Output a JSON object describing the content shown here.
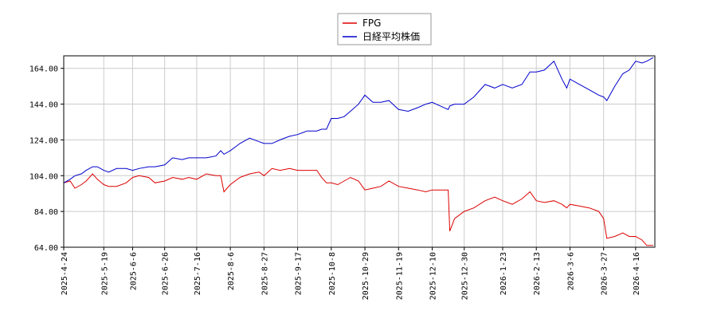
{
  "chart_data": {
    "type": "line",
    "title": "",
    "xlabel": "",
    "ylabel": "",
    "ylim": [
      64,
      171
    ],
    "yticks": [
      "64.00",
      "84.00",
      "104.00",
      "124.00",
      "144.00",
      "164.00"
    ],
    "xticks": [
      "2025-4-24",
      "2025-5-19",
      "2025-6-6",
      "2025-6-26",
      "2025-7-16",
      "2025-8-6",
      "2025-8-27",
      "2025-9-17",
      "2025-10-8",
      "2025-10-29",
      "2025-11-19",
      "2025-12-10",
      "2025-12-30",
      "2026-1-23",
      "2026-2-13",
      "2026-3-6",
      "2026-3-27",
      "2026-4-16"
    ],
    "grid": true,
    "legend_position": "top-center",
    "series": [
      {
        "name": "FPG",
        "color": "#dd0000",
        "points": [
          [
            "2025-4-24",
            100
          ],
          [
            "2025-4-28",
            101
          ],
          [
            "2025-5-1",
            97
          ],
          [
            "2025-5-5",
            99
          ],
          [
            "2025-5-8",
            101
          ],
          [
            "2025-5-12",
            105
          ],
          [
            "2025-5-15",
            102
          ],
          [
            "2025-5-19",
            99
          ],
          [
            "2025-5-22",
            98
          ],
          [
            "2025-5-27",
            98
          ],
          [
            "2025-6-2",
            100
          ],
          [
            "2025-6-6",
            103
          ],
          [
            "2025-6-10",
            104
          ],
          [
            "2025-6-16",
            103
          ],
          [
            "2025-6-20",
            100
          ],
          [
            "2025-6-26",
            101
          ],
          [
            "2025-7-1",
            103
          ],
          [
            "2025-7-7",
            102
          ],
          [
            "2025-7-11",
            103
          ],
          [
            "2025-7-16",
            102
          ],
          [
            "2025-7-22",
            105
          ],
          [
            "2025-7-28",
            104
          ],
          [
            "2025-7-31",
            104
          ],
          [
            "2025-8-2",
            95
          ],
          [
            "2025-8-6",
            99
          ],
          [
            "2025-8-12",
            103
          ],
          [
            "2025-8-18",
            105
          ],
          [
            "2025-8-24",
            106
          ],
          [
            "2025-8-27",
            104
          ],
          [
            "2025-9-1",
            108
          ],
          [
            "2025-9-6",
            107
          ],
          [
            "2025-9-12",
            108
          ],
          [
            "2025-9-17",
            107
          ],
          [
            "2025-9-23",
            107
          ],
          [
            "2025-9-29",
            107
          ],
          [
            "2025-10-2",
            103
          ],
          [
            "2025-10-5",
            100
          ],
          [
            "2025-10-8",
            100
          ],
          [
            "2025-10-12",
            99
          ],
          [
            "2025-10-16",
            101
          ],
          [
            "2025-10-20",
            103
          ],
          [
            "2025-10-25",
            101
          ],
          [
            "2025-10-29",
            96
          ],
          [
            "2025-11-3",
            97
          ],
          [
            "2025-11-8",
            98
          ],
          [
            "2025-11-13",
            101
          ],
          [
            "2025-11-19",
            98
          ],
          [
            "2025-11-25",
            97
          ],
          [
            "2025-12-1",
            96
          ],
          [
            "2025-12-6",
            95
          ],
          [
            "2025-12-10",
            96
          ],
          [
            "2025-12-15",
            96
          ],
          [
            "2025-12-20",
            96
          ],
          [
            "2025-12-21",
            73
          ],
          [
            "2025-12-24",
            80
          ],
          [
            "2025-12-30",
            84
          ],
          [
            "2026-1-5",
            86
          ],
          [
            "2026-1-12",
            90
          ],
          [
            "2026-1-18",
            92
          ],
          [
            "2026-1-23",
            90
          ],
          [
            "2026-1-29",
            88
          ],
          [
            "2026-2-4",
            91
          ],
          [
            "2026-2-9",
            95
          ],
          [
            "2026-2-13",
            90
          ],
          [
            "2026-2-18",
            89
          ],
          [
            "2026-2-24",
            90
          ],
          [
            "2026-3-1",
            88
          ],
          [
            "2026-3-4",
            86
          ],
          [
            "2026-3-6",
            88
          ],
          [
            "2026-3-12",
            87
          ],
          [
            "2026-3-18",
            86
          ],
          [
            "2026-3-24",
            84
          ],
          [
            "2026-3-27",
            80
          ],
          [
            "2026-3-29",
            69
          ],
          [
            "2026-4-3",
            70
          ],
          [
            "2026-4-8",
            72
          ],
          [
            "2026-4-12",
            70
          ],
          [
            "2026-4-16",
            70
          ],
          [
            "2026-4-20",
            68
          ],
          [
            "2026-4-23",
            65
          ],
          [
            "2026-4-27",
            65
          ]
        ]
      },
      {
        "name": "日経平均株価",
        "color": "#0000cc",
        "points": [
          [
            "2025-4-24",
            100
          ],
          [
            "2025-4-28",
            102
          ],
          [
            "2025-5-1",
            104
          ],
          [
            "2025-5-5",
            105
          ],
          [
            "2025-5-8",
            107
          ],
          [
            "2025-5-12",
            109
          ],
          [
            "2025-5-15",
            109
          ],
          [
            "2025-5-19",
            107
          ],
          [
            "2025-5-22",
            106
          ],
          [
            "2025-5-27",
            108
          ],
          [
            "2025-6-2",
            108
          ],
          [
            "2025-6-6",
            107
          ],
          [
            "2025-6-10",
            108
          ],
          [
            "2025-6-16",
            109
          ],
          [
            "2025-6-20",
            109
          ],
          [
            "2025-6-26",
            110
          ],
          [
            "2025-7-1",
            114
          ],
          [
            "2025-7-7",
            113
          ],
          [
            "2025-7-11",
            114
          ],
          [
            "2025-7-16",
            114
          ],
          [
            "2025-7-22",
            114
          ],
          [
            "2025-7-28",
            115
          ],
          [
            "2025-7-31",
            118
          ],
          [
            "2025-8-2",
            116
          ],
          [
            "2025-8-6",
            118
          ],
          [
            "2025-8-12",
            122
          ],
          [
            "2025-8-18",
            125
          ],
          [
            "2025-8-24",
            123
          ],
          [
            "2025-8-27",
            122
          ],
          [
            "2025-9-1",
            122
          ],
          [
            "2025-9-6",
            124
          ],
          [
            "2025-9-12",
            126
          ],
          [
            "2025-9-17",
            127
          ],
          [
            "2025-9-23",
            129
          ],
          [
            "2025-9-29",
            129
          ],
          [
            "2025-10-2",
            130
          ],
          [
            "2025-10-5",
            130
          ],
          [
            "2025-10-8",
            136
          ],
          [
            "2025-10-12",
            136
          ],
          [
            "2025-10-16",
            137
          ],
          [
            "2025-10-20",
            140
          ],
          [
            "2025-10-25",
            144
          ],
          [
            "2025-10-29",
            149
          ],
          [
            "2025-11-3",
            145
          ],
          [
            "2025-11-8",
            145
          ],
          [
            "2025-11-13",
            146
          ],
          [
            "2025-11-19",
            141
          ],
          [
            "2025-11-25",
            140
          ],
          [
            "2025-12-1",
            142
          ],
          [
            "2025-12-6",
            144
          ],
          [
            "2025-12-10",
            145
          ],
          [
            "2025-12-15",
            143
          ],
          [
            "2025-12-20",
            141
          ],
          [
            "2025-12-21",
            143
          ],
          [
            "2025-12-24",
            144
          ],
          [
            "2025-12-30",
            144
          ],
          [
            "2026-1-5",
            148
          ],
          [
            "2026-1-12",
            155
          ],
          [
            "2026-1-18",
            153
          ],
          [
            "2026-1-23",
            155
          ],
          [
            "2026-1-29",
            153
          ],
          [
            "2026-2-4",
            155
          ],
          [
            "2026-2-9",
            162
          ],
          [
            "2026-2-13",
            162
          ],
          [
            "2026-2-18",
            163
          ],
          [
            "2026-2-24",
            168
          ],
          [
            "2026-3-1",
            158
          ],
          [
            "2026-3-4",
            153
          ],
          [
            "2026-3-6",
            158
          ],
          [
            "2026-3-12",
            155
          ],
          [
            "2026-3-18",
            152
          ],
          [
            "2026-3-24",
            149
          ],
          [
            "2026-3-27",
            148
          ],
          [
            "2026-3-29",
            146
          ],
          [
            "2026-4-3",
            154
          ],
          [
            "2026-4-8",
            161
          ],
          [
            "2026-4-12",
            163
          ],
          [
            "2026-4-16",
            168
          ],
          [
            "2026-4-20",
            167
          ],
          [
            "2026-4-23",
            168
          ],
          [
            "2026-4-27",
            170
          ]
        ]
      }
    ]
  }
}
